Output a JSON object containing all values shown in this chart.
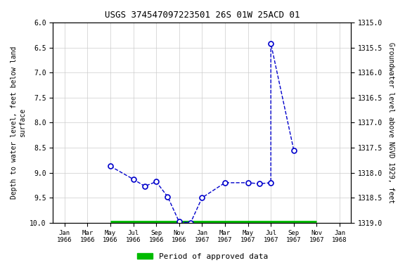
{
  "title": "USGS 374547097223501 26S 01W 25ACD 01",
  "xlabel_ticks": [
    "Jan\n1966",
    "Mar\n1966",
    "May\n1966",
    "Jul\n1966",
    "Sep\n1966",
    "Nov\n1966",
    "Jan\n1967",
    "Mar\n1967",
    "May\n1967",
    "Jul\n1967",
    "Sep\n1967",
    "Nov\n1967",
    "Jan\n1968"
  ],
  "tick_positions": [
    0,
    2,
    4,
    6,
    8,
    10,
    12,
    14,
    16,
    18,
    20,
    22,
    24
  ],
  "ylabel_left": "Depth to water level, feet below land\nsurface",
  "ylabel_right": "Groundwater level above NGVD 1929, feet",
  "ylim_left": [
    6.0,
    10.0
  ],
  "ylim_right": [
    1315.0,
    1319.0
  ],
  "y_ticks_left": [
    6.0,
    6.5,
    7.0,
    7.5,
    8.0,
    8.5,
    9.0,
    9.5,
    10.0
  ],
  "y_ticks_right": [
    1315.0,
    1315.5,
    1316.0,
    1316.5,
    1317.0,
    1317.5,
    1318.0,
    1318.5,
    1319.0
  ],
  "all_x": [
    4,
    6,
    7,
    8,
    9,
    10,
    11,
    12,
    14,
    16,
    17,
    18,
    18,
    20
  ],
  "all_y": [
    8.87,
    9.13,
    9.27,
    9.18,
    9.48,
    9.98,
    10.0,
    9.5,
    9.2,
    9.2,
    9.22,
    9.2,
    6.42,
    8.55
  ],
  "marker_x": [
    4,
    6,
    7,
    8,
    9,
    10,
    11,
    12,
    14,
    16,
    17,
    18,
    18,
    20
  ],
  "marker_y": [
    8.87,
    9.13,
    9.27,
    9.18,
    9.48,
    9.98,
    10.0,
    9.5,
    9.2,
    9.2,
    9.22,
    9.2,
    6.42,
    8.55
  ],
  "green_bar_y": 10.0,
  "green_bar_xmin_pos": 4,
  "green_bar_xmax_pos": 22,
  "xlim": [
    -1,
    25
  ],
  "line_color": "#0000cc",
  "marker_color": "#0000cc",
  "green_bar_color": "#00bb00",
  "background_color": "#ffffff",
  "grid_color": "#cccccc",
  "legend_label": "Period of approved data"
}
